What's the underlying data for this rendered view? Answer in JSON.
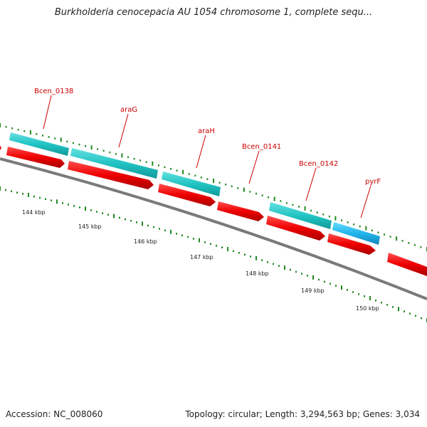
{
  "header": {
    "title": "Burkholderia cenocepacia AU 1054 chromosome 1, complete sequ..."
  },
  "footer": {
    "accession": "Accession: NC_008060",
    "summary": "Topology: circular; Length: 3,294,563 bp; Genes: 3,034"
  },
  "colors": {
    "backbone": "#808080",
    "cds_red": "#ff0000",
    "gene_cyan": "#33cccc",
    "gene_blue": "#33bbee",
    "label_red": "#cc0000",
    "tick_green": "#228822"
  },
  "gene_labels": [
    "Bcen_0138",
    "araG",
    "araH",
    "Bcen_0141",
    "Bcen_0142",
    "pyrF"
  ],
  "kbp_labels": [
    "144 kbp",
    "145 kbp",
    "146 kbp",
    "147 kbp",
    "148 kbp",
    "149 kbp",
    "150 kbp"
  ]
}
